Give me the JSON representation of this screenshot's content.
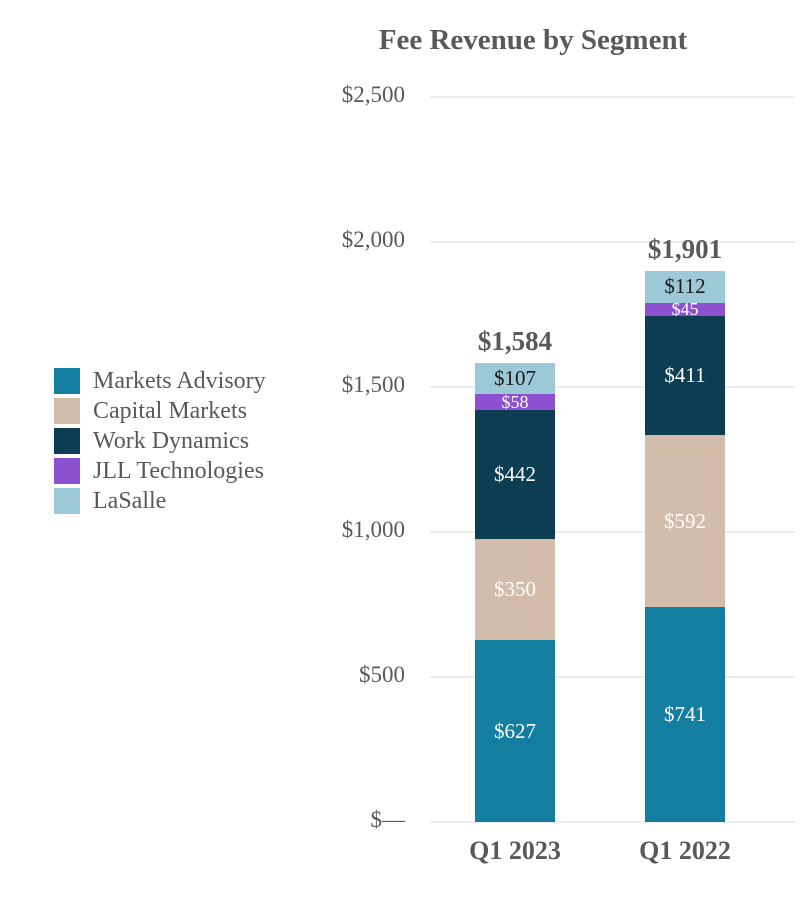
{
  "title": "Fee Revenue by Segment",
  "chart_data": {
    "type": "bar",
    "stacked": true,
    "title": "Fee Revenue by Segment",
    "categories": [
      "Q1 2023",
      "Q1 2022"
    ],
    "series": [
      {
        "name": "Markets Advisory",
        "color": "#137E9F",
        "label_color": "#FFFFFF",
        "values": [
          627,
          741
        ],
        "labels": [
          "$627",
          "$741"
        ]
      },
      {
        "name": "Capital Markets",
        "color": "#D3BCA9",
        "label_color": "#FFFFFF",
        "values": [
          350,
          592
        ],
        "labels": [
          "$350",
          "$592"
        ]
      },
      {
        "name": "Work Dynamics",
        "color": "#0D3D52",
        "label_color": "#FFFFFF",
        "values": [
          442,
          411
        ],
        "labels": [
          "$442",
          "$411"
        ]
      },
      {
        "name": "JLL Technologies",
        "color": "#8C50D0",
        "label_color": "#FFFFFF",
        "values": [
          58,
          45
        ],
        "labels": [
          "$58",
          "$45"
        ]
      },
      {
        "name": "LaSalle",
        "color": "#9CC8D8",
        "label_color": "#1A1A1A",
        "values": [
          107,
          112
        ],
        "labels": [
          "$107",
          "$112"
        ]
      }
    ],
    "totals": {
      "values": [
        1584,
        1901
      ],
      "labels": [
        "$1,584",
        "$1,901"
      ]
    },
    "y_axis": {
      "ticks": [
        {
          "label": "$2,500",
          "value": 2500
        },
        {
          "label": "$2,000",
          "value": 2000
        },
        {
          "label": "$1,500",
          "value": 1500
        },
        {
          "label": "$1,000",
          "value": 1000
        },
        {
          "label": "$500",
          "value": 500
        },
        {
          "label": "$—",
          "value": 0
        }
      ]
    },
    "ylim": [
      0,
      2500
    ],
    "grid": true,
    "legend_position": "left",
    "text_color": "#595959",
    "gridline_color": "#ECECEC"
  }
}
